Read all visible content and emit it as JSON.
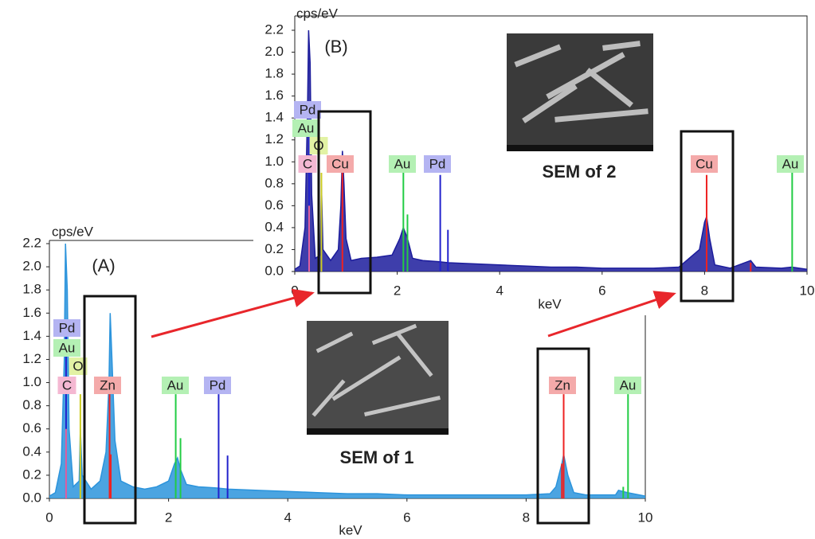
{
  "chart_data": [
    {
      "type": "line",
      "panel_label": "(A)",
      "y_unit_label": "cps/eV",
      "xlabel": "keV",
      "xlim": [
        0,
        10
      ],
      "xticks": [
        0,
        2,
        4,
        6,
        8,
        10
      ],
      "ylim": [
        0,
        2.2
      ],
      "yticks": [
        {
          "value": 0,
          "label": "0.0"
        },
        0.2,
        0.4,
        0.6,
        0.8,
        {
          "value": 1,
          "label": "1.0"
        },
        1.2,
        1.4,
        1.6,
        1.8,
        {
          "value": 2,
          "label": "2.0"
        },
        2.2
      ],
      "spectrum": {
        "color": "#2c94dc",
        "x": [
          0,
          0.1,
          0.2,
          0.25,
          0.27,
          0.3,
          0.33,
          0.4,
          0.5,
          0.52,
          0.55,
          0.7,
          0.85,
          0.95,
          1.0,
          1.02,
          1.05,
          1.1,
          1.2,
          1.4,
          1.6,
          1.8,
          2.0,
          2.1,
          2.15,
          2.2,
          2.3,
          2.5,
          2.8,
          3.0,
          3.5,
          4.0,
          4.5,
          5.0,
          5.5,
          6.0,
          6.5,
          7.0,
          7.5,
          8.0,
          8.4,
          8.5,
          8.6,
          8.63,
          8.7,
          8.8,
          9.0,
          9.5,
          9.55,
          9.7,
          10
        ],
        "values": [
          0.02,
          0.05,
          0.3,
          1.2,
          2.2,
          1.8,
          0.6,
          0.1,
          0.15,
          0.6,
          0.2,
          0.08,
          0.15,
          0.4,
          1.0,
          1.6,
          1.2,
          0.5,
          0.15,
          0.1,
          0.08,
          0.1,
          0.15,
          0.3,
          0.35,
          0.25,
          0.12,
          0.1,
          0.09,
          0.08,
          0.07,
          0.06,
          0.05,
          0.04,
          0.04,
          0.03,
          0.03,
          0.03,
          0.03,
          0.03,
          0.04,
          0.1,
          0.3,
          0.38,
          0.2,
          0.05,
          0.03,
          0.03,
          0.07,
          0.05,
          0.02
        ]
      },
      "peaks": [
        {
          "color": "#2222cc",
          "x": [
            0.28,
            2.84,
            2.99
          ],
          "values": [
            1.4,
            0.9,
            0.37
          ]
        },
        {
          "color": "#22cc44",
          "x": [
            2.12,
            2.2,
            9.63,
            9.71
          ],
          "values": [
            0.9,
            0.52,
            0.1,
            0.9
          ]
        },
        {
          "color": "#ee2222",
          "x": [
            1.01,
            1.03,
            8.6,
            8.63
          ],
          "values": [
            0.9,
            0.38,
            0.3,
            0.9
          ]
        },
        {
          "color": "#cccc22",
          "x": [
            0.52
          ],
          "values": [
            0.9
          ]
        },
        {
          "color": "#e060a0",
          "x": [
            0.28
          ],
          "values": [
            0.6
          ]
        }
      ],
      "annotations": [
        {
          "text": "Pd",
          "color": "#b4b4f2"
        },
        {
          "text": "Au",
          "color": "#b4f0b4"
        },
        {
          "text": "O",
          "color": "#e2f2a4"
        },
        {
          "text": "C",
          "color": "#f4b8d2"
        },
        {
          "text": "Zn",
          "color": "#f4aaaa"
        },
        {
          "text": "Au",
          "color": "#b4f0b4"
        },
        {
          "text": "Pd",
          "color": "#b4b4f2"
        },
        {
          "text": "Zn",
          "color": "#f4aaaa"
        },
        {
          "text": "Au",
          "color": "#b4f0b4"
        }
      ],
      "image_caption": "SEM of 1"
    },
    {
      "type": "line",
      "panel_label": "(B)",
      "y_unit_label": "cps/eV",
      "xlabel": "keV",
      "xlim": [
        0,
        10
      ],
      "xticks": [
        0,
        2,
        4,
        6,
        8,
        10
      ],
      "ylim": [
        0,
        2.2
      ],
      "yticks": [
        {
          "value": 0,
          "label": "0.0"
        },
        0.2,
        0.4,
        0.6,
        0.8,
        {
          "value": 1,
          "label": "1.0"
        },
        1.2,
        1.4,
        1.6,
        1.8,
        {
          "value": 2,
          "label": "2.0"
        },
        2.2
      ],
      "spectrum": {
        "color": "#1c1c9c",
        "x": [
          0,
          0.1,
          0.2,
          0.25,
          0.27,
          0.3,
          0.33,
          0.4,
          0.5,
          0.52,
          0.55,
          0.7,
          0.85,
          0.9,
          0.93,
          0.96,
          1.0,
          1.1,
          1.3,
          1.6,
          1.9,
          2.05,
          2.12,
          2.2,
          2.3,
          2.5,
          2.8,
          3.0,
          3.5,
          4.0,
          4.5,
          5.0,
          5.5,
          6.0,
          6.5,
          7.0,
          7.5,
          7.9,
          8.0,
          8.04,
          8.1,
          8.2,
          8.5,
          8.9,
          9.0,
          9.5,
          9.7,
          10
        ],
        "values": [
          0.02,
          0.05,
          0.4,
          1.5,
          2.2,
          1.9,
          0.7,
          0.12,
          0.15,
          0.8,
          0.2,
          0.1,
          0.2,
          0.6,
          1.1,
          0.8,
          0.3,
          0.1,
          0.12,
          0.13,
          0.15,
          0.3,
          0.4,
          0.3,
          0.12,
          0.1,
          0.09,
          0.08,
          0.07,
          0.06,
          0.05,
          0.04,
          0.04,
          0.03,
          0.03,
          0.03,
          0.04,
          0.2,
          0.45,
          0.5,
          0.3,
          0.06,
          0.03,
          0.1,
          0.04,
          0.03,
          0.04,
          0.02
        ]
      },
      "peaks": [
        {
          "color": "#2222cc",
          "x": [
            0.28,
            2.84,
            2.99
          ],
          "values": [
            1.4,
            0.88,
            0.38
          ]
        },
        {
          "color": "#22cc44",
          "x": [
            2.12,
            2.2,
            9.71
          ],
          "values": [
            0.9,
            0.52,
            0.9
          ]
        },
        {
          "color": "#ee2222",
          "x": [
            0.93,
            8.04,
            8.9
          ],
          "values": [
            0.9,
            0.88,
            0.08
          ]
        },
        {
          "color": "#cccc22",
          "x": [
            0.52
          ],
          "values": [
            0.9
          ]
        },
        {
          "color": "#e060a0",
          "x": [
            0.28
          ],
          "values": [
            0.6
          ]
        }
      ],
      "annotations": [
        {
          "text": "Pd",
          "color": "#b4b4f2"
        },
        {
          "text": "Au",
          "color": "#b4f0b4"
        },
        {
          "text": "O",
          "color": "#e2f2a4"
        },
        {
          "text": "C",
          "color": "#f4b8d2"
        },
        {
          "text": "Cu",
          "color": "#f4aaaa"
        },
        {
          "text": "Au",
          "color": "#b4f0b4"
        },
        {
          "text": "Pd",
          "color": "#b4b4f2"
        },
        {
          "text": "Cu",
          "color": "#f4aaaa"
        },
        {
          "text": "Au",
          "color": "#b4f0b4"
        }
      ],
      "image_caption": "SEM of 2"
    }
  ]
}
